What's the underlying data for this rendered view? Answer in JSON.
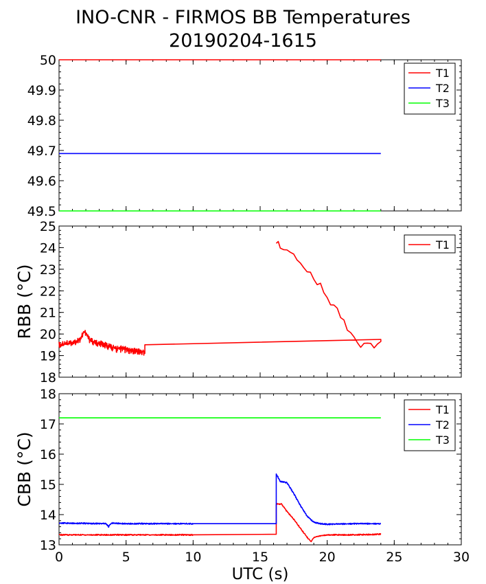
{
  "title": "INO-CNR - FIRMOS BB Temperatures",
  "subtitle": "20190204-1615",
  "chart_data": [
    {
      "type": "line",
      "panel": "top",
      "ylabel": "",
      "xlim": [
        0,
        30
      ],
      "ylim": [
        49.5,
        50
      ],
      "yticks": [
        "49.5",
        "49.6",
        "49.7",
        "49.8",
        "49.9",
        "50"
      ],
      "legend_position": "top-right",
      "grid": false,
      "series": [
        {
          "name": "T1",
          "color": "#ff0000",
          "x": [
            0,
            24
          ],
          "y": [
            50.0,
            50.0
          ]
        },
        {
          "name": "T2",
          "color": "#0000ff",
          "x": [
            0,
            24
          ],
          "y": [
            49.69,
            49.69
          ]
        },
        {
          "name": "T3",
          "color": "#00ff00",
          "x": [
            0,
            24
          ],
          "y": [
            49.5,
            49.5
          ]
        }
      ]
    },
    {
      "type": "line",
      "panel": "middle",
      "ylabel": "RBB (°C)",
      "xlim": [
        0,
        30
      ],
      "ylim": [
        18,
        25
      ],
      "yticks": [
        "18",
        "19",
        "20",
        "21",
        "22",
        "23",
        "24",
        "25"
      ],
      "legend_position": "top-right",
      "grid": false,
      "series": [
        {
          "name": "T1",
          "color": "#ff0000",
          "x": [
            0,
            0.5,
            1.0,
            1.5,
            1.9,
            2.3,
            2.8,
            3.3,
            3.8,
            4.3,
            4.8,
            5.3,
            5.8,
            6.4,
            6.4,
            24.0,
            24.0,
            23.5,
            23.0,
            22.5,
            22.0,
            21.5,
            21.0,
            20.5,
            20.0,
            19.5,
            19.0,
            18.5,
            18.0,
            17.5,
            17.0,
            16.5,
            16.2
          ],
          "y": [
            19.5,
            19.6,
            19.6,
            19.7,
            20.1,
            19.7,
            19.6,
            19.5,
            19.4,
            19.3,
            19.3,
            19.2,
            19.2,
            19.1,
            19.5,
            19.75,
            19.5,
            19.4,
            19.45,
            19.5,
            19.9,
            20.3,
            20.8,
            21.3,
            21.7,
            22.2,
            22.6,
            23.0,
            23.3,
            23.7,
            24.0,
            24.1,
            24.2
          ]
        }
      ]
    },
    {
      "type": "line",
      "panel": "bottom",
      "ylabel": "CBB (°C)",
      "xlabel": "UTC (s)",
      "xlim": [
        0,
        30
      ],
      "xticks": [
        "0",
        "5",
        "10",
        "15",
        "20",
        "25",
        "30"
      ],
      "ylim": [
        13,
        18
      ],
      "yticks": [
        "13",
        "14",
        "15",
        "16",
        "17",
        "18"
      ],
      "legend_position": "top-right",
      "grid": false,
      "series": [
        {
          "name": "T1",
          "color": "#ff0000",
          "x": [
            0,
            5,
            10,
            16.2,
            16.2,
            16.6,
            17.0,
            17.5,
            18.0,
            18.5,
            18.8,
            19.0,
            19.5,
            20.0,
            22.0,
            24.0
          ],
          "y": [
            13.33,
            13.33,
            13.33,
            13.35,
            14.35,
            14.35,
            14.1,
            13.85,
            13.55,
            13.25,
            13.1,
            13.25,
            13.3,
            13.33,
            13.33,
            13.35
          ]
        },
        {
          "name": "T2",
          "color": "#0000ff",
          "x": [
            0,
            3.5,
            3.7,
            3.9,
            5,
            10,
            16.2,
            16.2,
            16.5,
            17.0,
            17.5,
            18.0,
            18.5,
            19.0,
            19.5,
            20.0,
            22.0,
            24.0
          ],
          "y": [
            13.72,
            13.7,
            13.6,
            13.72,
            13.7,
            13.7,
            13.7,
            15.35,
            15.1,
            15.05,
            14.7,
            14.3,
            13.95,
            13.75,
            13.7,
            13.68,
            13.7,
            13.7
          ]
        },
        {
          "name": "T3",
          "color": "#00ff00",
          "x": [
            0,
            24
          ],
          "y": [
            17.2,
            17.2
          ]
        }
      ]
    }
  ]
}
